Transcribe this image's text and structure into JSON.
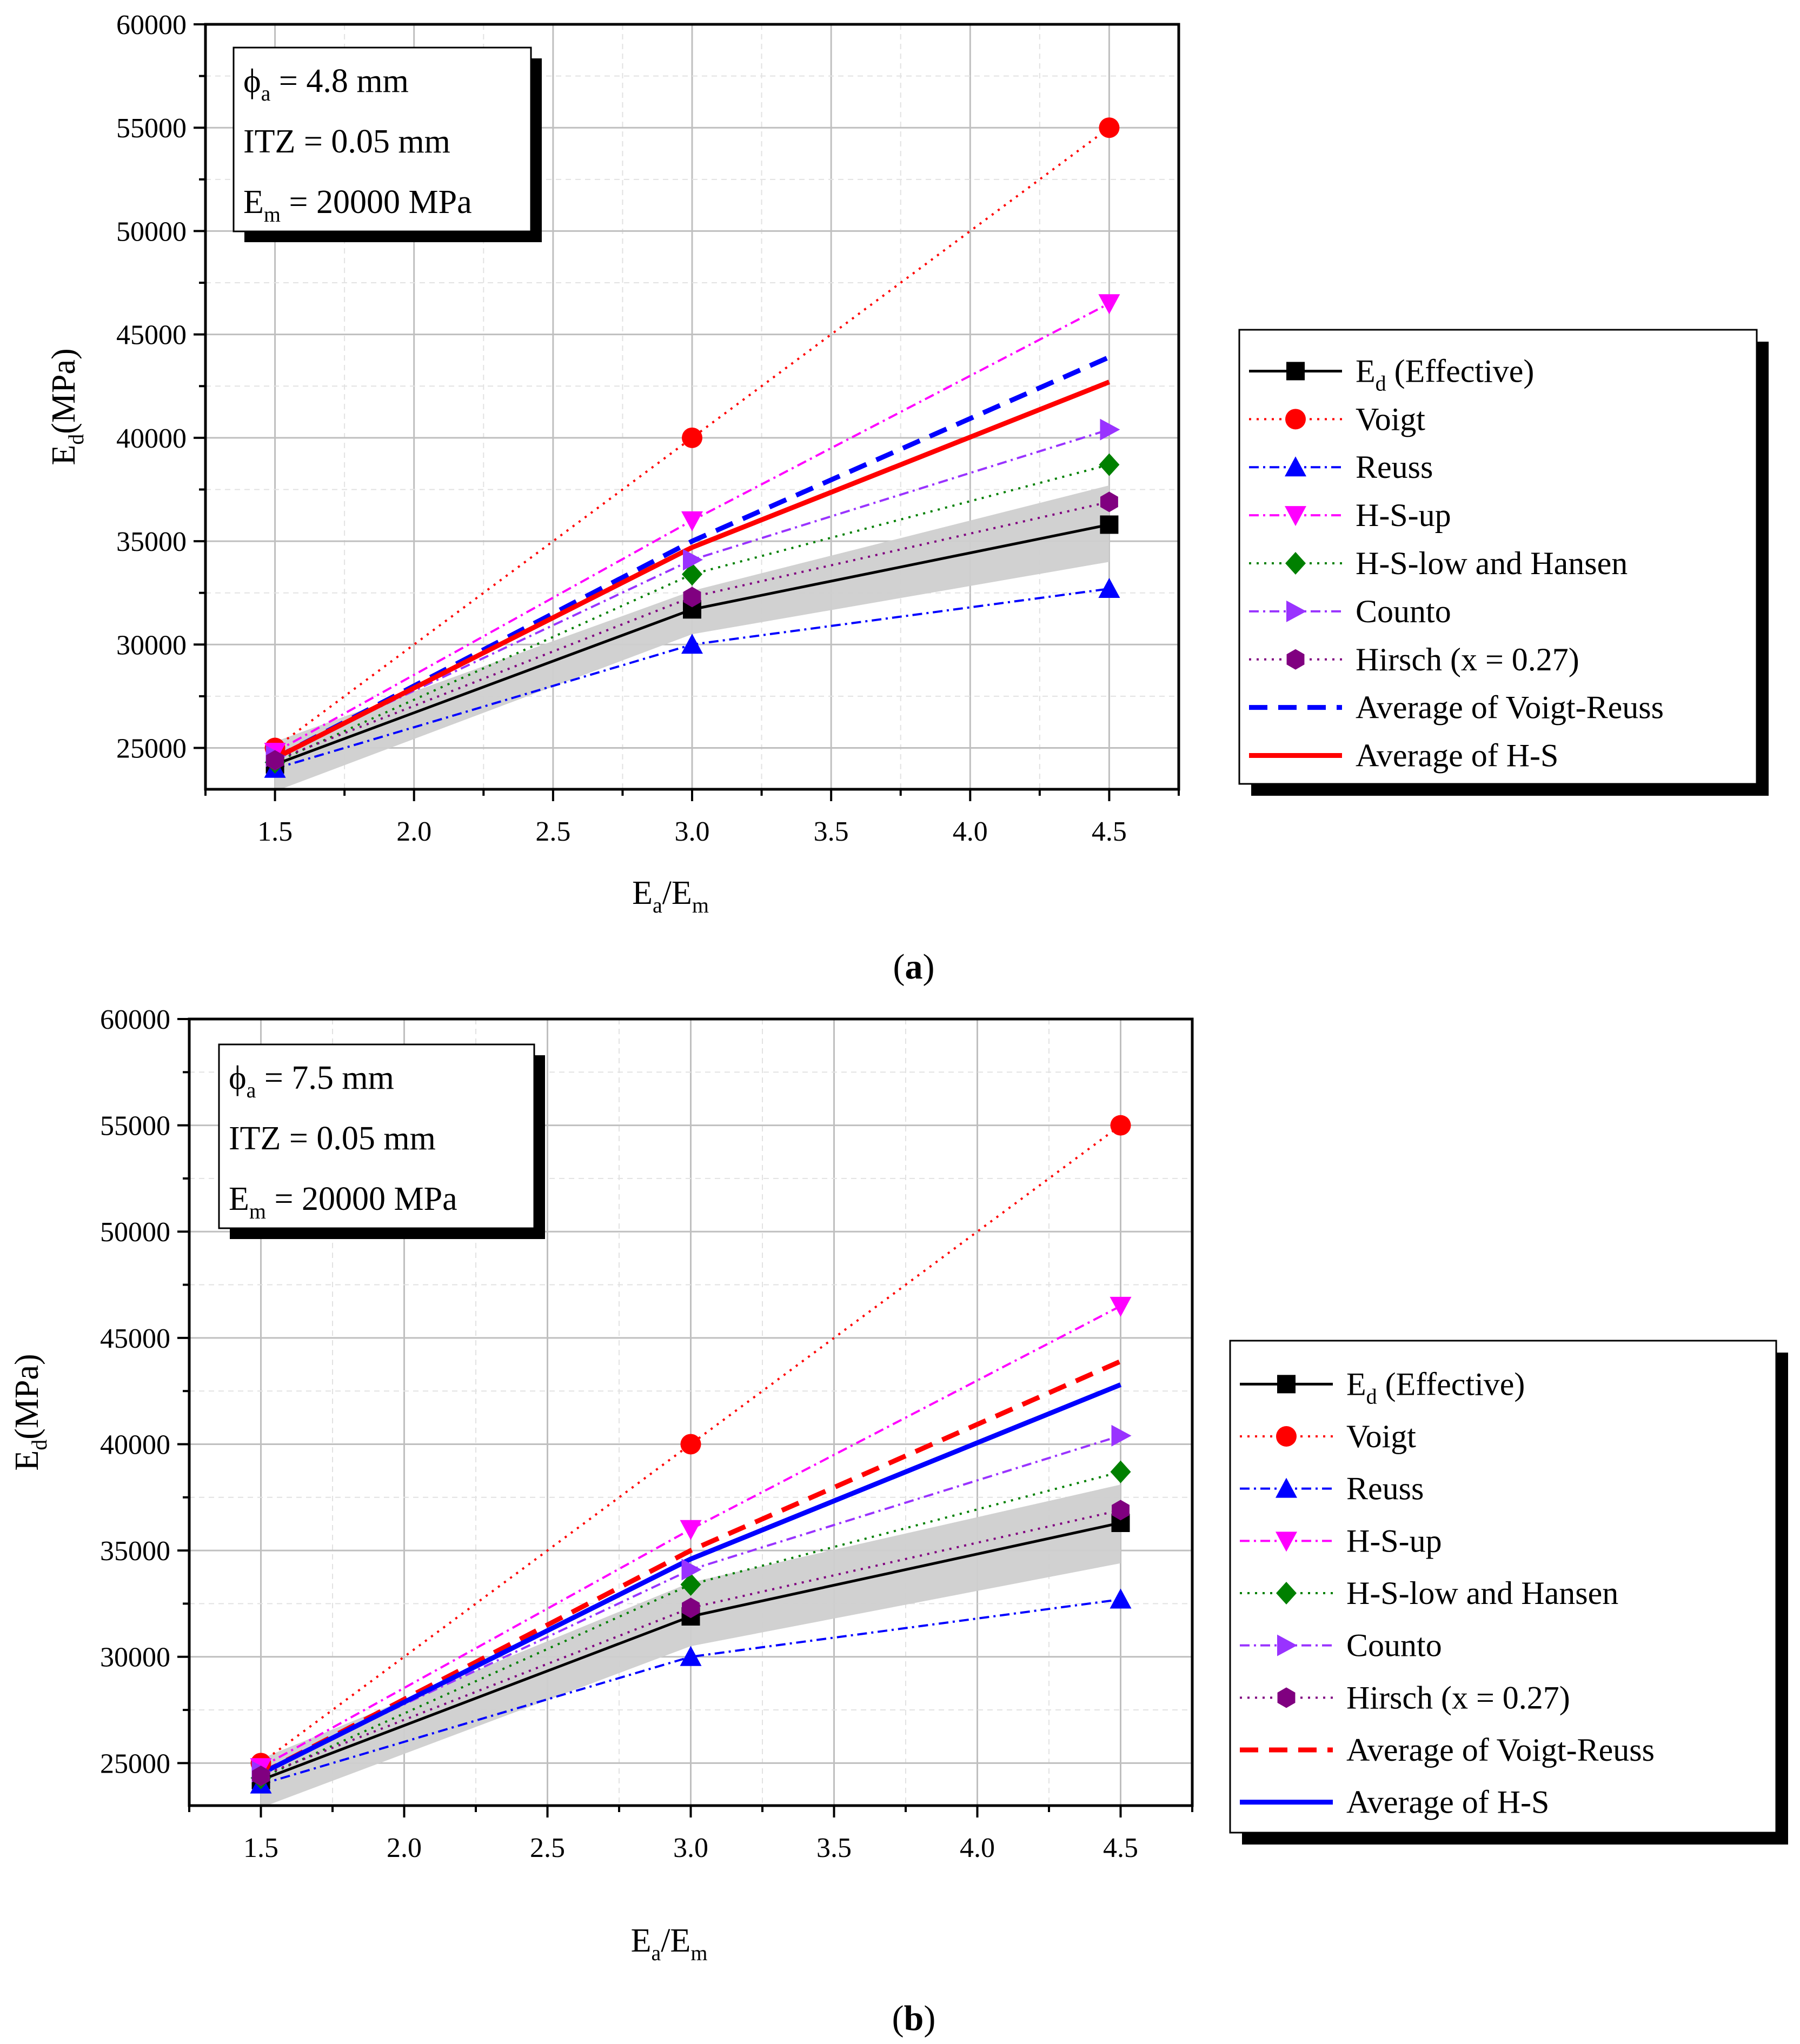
{
  "figure": {
    "panel_labels": [
      "a",
      "b"
    ]
  },
  "chart_data": [
    {
      "type": "line",
      "panel": "a",
      "xlabel": {
        "main": "E",
        "sub1": "a",
        "mid": "/E",
        "sub2": "m"
      },
      "ylabel": {
        "main": "E",
        "sub": "d",
        "rest": "(MPa)"
      },
      "xlim": [
        1.25,
        4.75
      ],
      "ylim": [
        23000,
        60000
      ],
      "xticks": [
        "1.5",
        "2.0",
        "2.5",
        "3.0",
        "3.5",
        "4.0",
        "4.5"
      ],
      "yticks": [
        "25000",
        "30000",
        "35000",
        "40000",
        "45000",
        "50000",
        "55000",
        "60000"
      ],
      "x": [
        1.5,
        3.0,
        4.5
      ],
      "annotation": [
        {
          "pre": "ϕ",
          "sub": "a",
          "post": " = 4.8 mm"
        },
        {
          "pre": "ITZ = 0.05 mm",
          "sub": "",
          "post": ""
        },
        {
          "pre": "E",
          "sub": "m",
          "post": " = 20000 MPa"
        }
      ],
      "band": {
        "upper": [
          25300,
          32600,
          37700
        ],
        "lower": [
          22900,
          30500,
          34000
        ],
        "color": "#cfcfcf"
      },
      "series": [
        {
          "name": "E",
          "name_sub": "d",
          "name_rest": " (Effective)",
          "values": [
            24200,
            31700,
            35800
          ],
          "color": "#000000",
          "style": "solid",
          "marker": "square"
        },
        {
          "name": "Voigt",
          "values": [
            25000,
            40000,
            55000
          ],
          "color": "#ff0000",
          "style": "dot",
          "marker": "circle"
        },
        {
          "name": "Reuss",
          "values": [
            24000,
            30000,
            32700
          ],
          "color": "#0000ff",
          "style": "dashdot",
          "marker": "triangle-up"
        },
        {
          "name": "H-S-up",
          "values": [
            24800,
            36000,
            46500
          ],
          "color": "#ff00ff",
          "style": "dashdot",
          "marker": "triangle-down"
        },
        {
          "name": "H-S-low and Hansen",
          "values": [
            24300,
            33400,
            38700
          ],
          "color": "#008000",
          "style": "dot",
          "marker": "diamond"
        },
        {
          "name": "Counto",
          "values": [
            24600,
            34100,
            40400
          ],
          "color": "#9933ff",
          "style": "dashdot",
          "marker": "triangle-right"
        },
        {
          "name": "Hirsch (x = 0.27)",
          "values": [
            24400,
            32300,
            36900
          ],
          "color": "#800080",
          "style": "dot",
          "marker": "hexagon"
        },
        {
          "name": "Average of Voigt-Reuss",
          "values": [
            24500,
            35000,
            43900
          ],
          "color": "#0000ff",
          "style": "dash",
          "marker": "none"
        },
        {
          "name": "Average of H-S",
          "values": [
            24500,
            34700,
            42700
          ],
          "color": "#ff0000",
          "style": "solid",
          "marker": "none"
        }
      ]
    },
    {
      "type": "line",
      "panel": "b",
      "xlabel": {
        "main": "E",
        "sub1": "a",
        "mid": "/E",
        "sub2": "m"
      },
      "ylabel": {
        "main": "E",
        "sub": "d",
        "rest": "(MPa)"
      },
      "xlim": [
        1.25,
        4.75
      ],
      "ylim": [
        23000,
        60000
      ],
      "xticks": [
        "1.5",
        "2.0",
        "2.5",
        "3.0",
        "3.5",
        "4.0",
        "4.5"
      ],
      "yticks": [
        "25000",
        "30000",
        "35000",
        "40000",
        "45000",
        "50000",
        "55000",
        "60000"
      ],
      "x": [
        1.5,
        3.0,
        4.5
      ],
      "annotation": [
        {
          "pre": "ϕ",
          "sub": "a",
          "post": " = 7.5 mm"
        },
        {
          "pre": "ITZ = 0.05 mm",
          "sub": "",
          "post": ""
        },
        {
          "pre": "E",
          "sub": "m",
          "post": " = 20000 MPa"
        }
      ],
      "band": {
        "upper": [
          25200,
          33500,
          38100
        ],
        "lower": [
          22900,
          30500,
          34400
        ],
        "color": "#cfcfcf"
      },
      "series": [
        {
          "name": "E",
          "name_sub": "d",
          "name_rest": " (Effective)",
          "values": [
            24200,
            31900,
            36300
          ],
          "color": "#000000",
          "style": "solid",
          "marker": "square"
        },
        {
          "name": "Voigt",
          "values": [
            25000,
            40000,
            55000
          ],
          "color": "#ff0000",
          "style": "dot",
          "marker": "circle"
        },
        {
          "name": "Reuss",
          "values": [
            24000,
            30000,
            32700
          ],
          "color": "#0000ff",
          "style": "dashdot",
          "marker": "triangle-up"
        },
        {
          "name": "H-S-up",
          "values": [
            24800,
            36000,
            46500
          ],
          "color": "#ff00ff",
          "style": "dashdot",
          "marker": "triangle-down"
        },
        {
          "name": "H-S-low and Hansen",
          "values": [
            24300,
            33400,
            38700
          ],
          "color": "#008000",
          "style": "dot",
          "marker": "diamond"
        },
        {
          "name": "Counto",
          "values": [
            24600,
            34100,
            40400
          ],
          "color": "#9933ff",
          "style": "dashdot",
          "marker": "triangle-right"
        },
        {
          "name": "Hirsch (x = 0.27)",
          "values": [
            24400,
            32300,
            36900
          ],
          "color": "#800080",
          "style": "dot",
          "marker": "hexagon"
        },
        {
          "name": "Average of Voigt-Reuss",
          "values": [
            24500,
            35000,
            43900
          ],
          "color": "#ff0000",
          "style": "dash",
          "marker": "none"
        },
        {
          "name": "Average of H-S",
          "values": [
            24500,
            34600,
            42800
          ],
          "color": "#0000ff",
          "style": "solid",
          "marker": "none"
        }
      ]
    }
  ]
}
